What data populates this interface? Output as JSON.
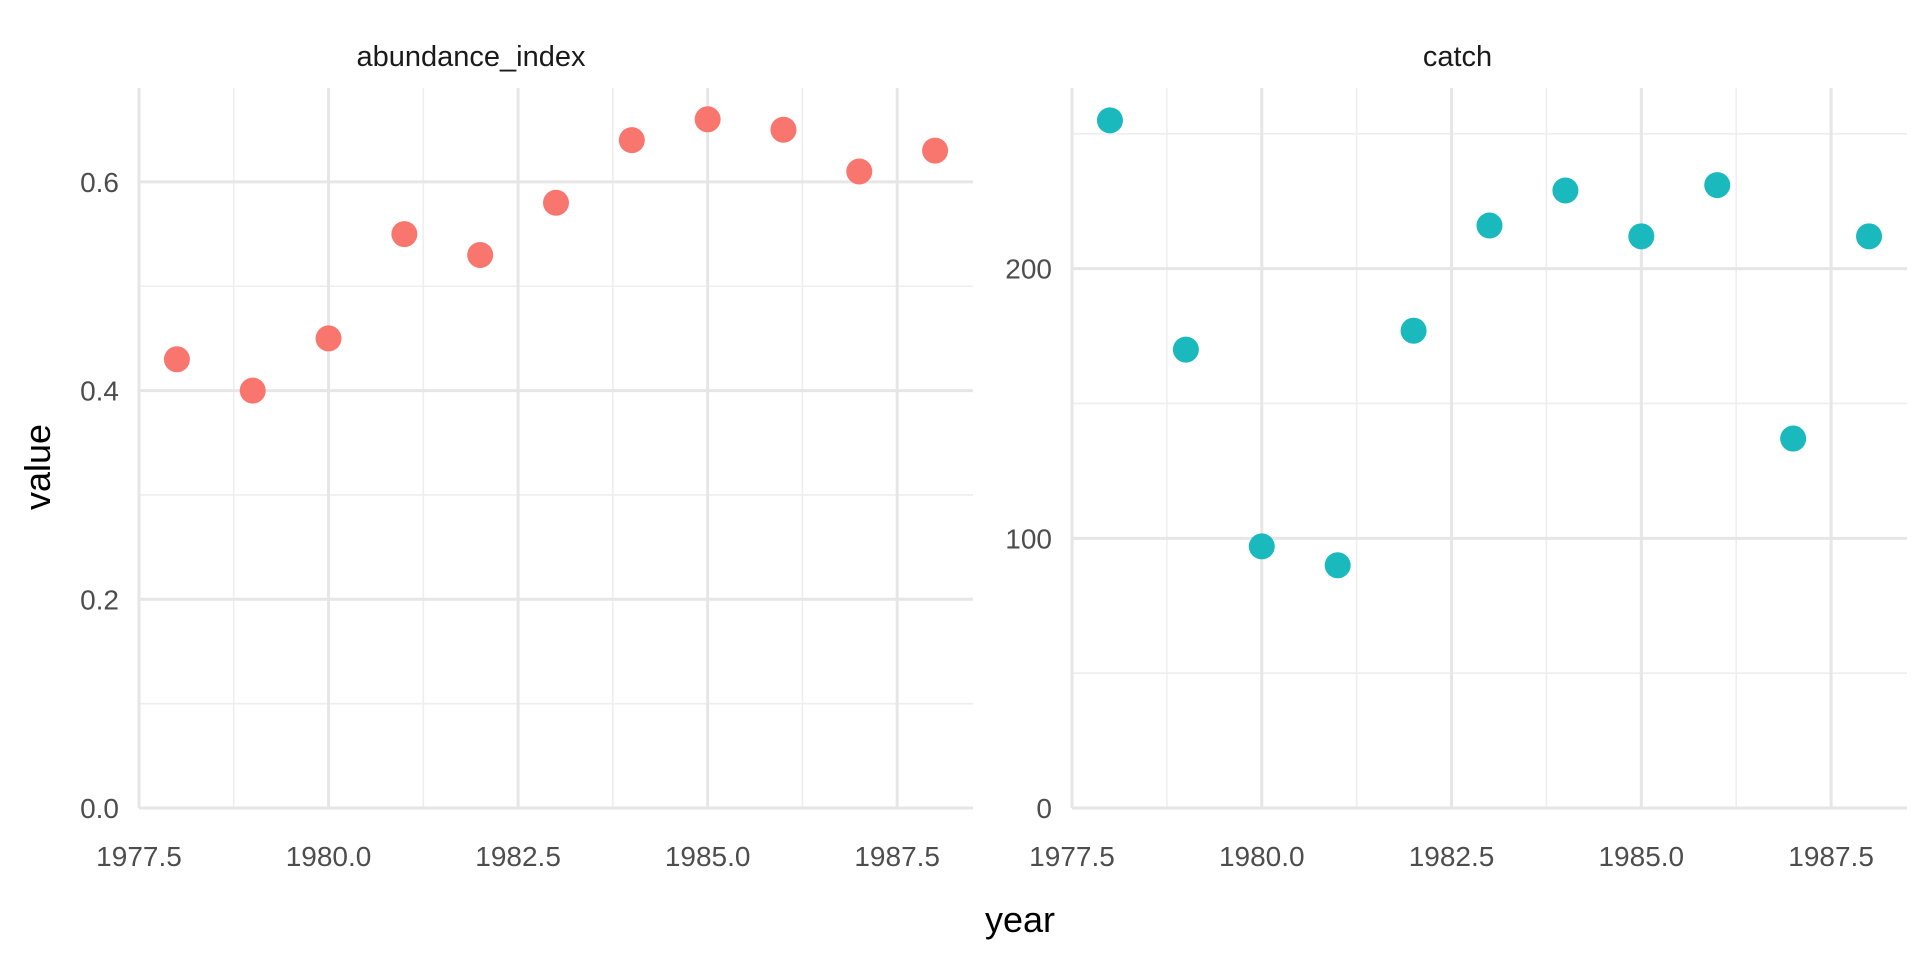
{
  "chart_data": {
    "type": "scatter",
    "xlabel": "year",
    "ylabel": "value",
    "grid": true,
    "legend": "none",
    "facets": [
      {
        "title": "abundance_index",
        "color": "#F8766D",
        "xlim": [
          1977.5,
          1988.5
        ],
        "ylim": [
          0.0,
          0.69
        ],
        "x_ticks": [
          1977.5,
          1980.0,
          1982.5,
          1985.0,
          1987.5
        ],
        "x_tick_labels": [
          "1977.5",
          "1980.0",
          "1982.5",
          "1985.0",
          "1987.5"
        ],
        "y_ticks": [
          0.0,
          0.2,
          0.4,
          0.6
        ],
        "y_tick_labels": [
          "0.0",
          "0.2",
          "0.4",
          "0.6"
        ],
        "x": [
          1978,
          1979,
          1980,
          1981,
          1982,
          1983,
          1984,
          1985,
          1986,
          1987,
          1988
        ],
        "y": [
          0.43,
          0.4,
          0.45,
          0.55,
          0.53,
          0.58,
          0.64,
          0.66,
          0.65,
          0.61,
          0.63
        ]
      },
      {
        "title": "catch",
        "color": "#19B9BD",
        "xlim": [
          1977.5,
          1988.5
        ],
        "ylim": [
          0,
          267
        ],
        "x_ticks": [
          1977.5,
          1980.0,
          1982.5,
          1985.0,
          1987.5
        ],
        "x_tick_labels": [
          "1977.5",
          "1980.0",
          "1982.5",
          "1985.0",
          "1987.5"
        ],
        "y_ticks": [
          0,
          100,
          200
        ],
        "y_tick_labels": [
          "0",
          "100",
          "200"
        ],
        "x": [
          1978,
          1979,
          1980,
          1981,
          1982,
          1983,
          1984,
          1985,
          1986,
          1987,
          1988
        ],
        "y": [
          255,
          170,
          97,
          90,
          177,
          216,
          229,
          212,
          231,
          137,
          212
        ]
      }
    ]
  }
}
